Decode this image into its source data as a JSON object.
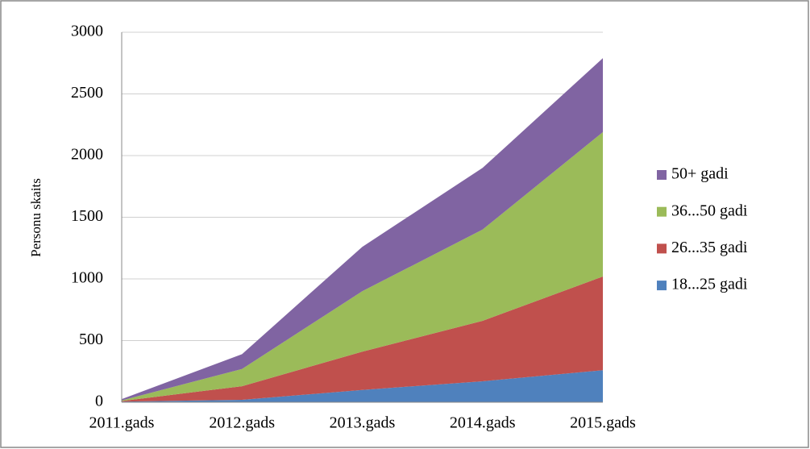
{
  "chart_data": {
    "type": "stacked_area",
    "y_label": "Personu skaits",
    "categories": [
      "2011.gads",
      "2012.gads",
      "2013.gads",
      "2014.gads",
      "2015.gads"
    ],
    "series": [
      {
        "name": "18...25 gadi",
        "color": "#4f81bd",
        "values": [
          5,
          20,
          100,
          170,
          260
        ]
      },
      {
        "name": "26...35 gadi",
        "color": "#c0504d",
        "values": [
          5,
          110,
          310,
          490,
          760
        ]
      },
      {
        "name": "36...50 gadi",
        "color": "#9bbb59",
        "values": [
          5,
          140,
          490,
          740,
          1170
        ]
      },
      {
        "name": "50+ gadi",
        "color": "#8064a2",
        "values": [
          10,
          120,
          360,
          500,
          600
        ]
      }
    ],
    "ylim": [
      0,
      3000
    ],
    "yticks": [
      0,
      500,
      1000,
      1500,
      2000,
      2500,
      3000
    ],
    "grid": true,
    "legend": "right"
  }
}
